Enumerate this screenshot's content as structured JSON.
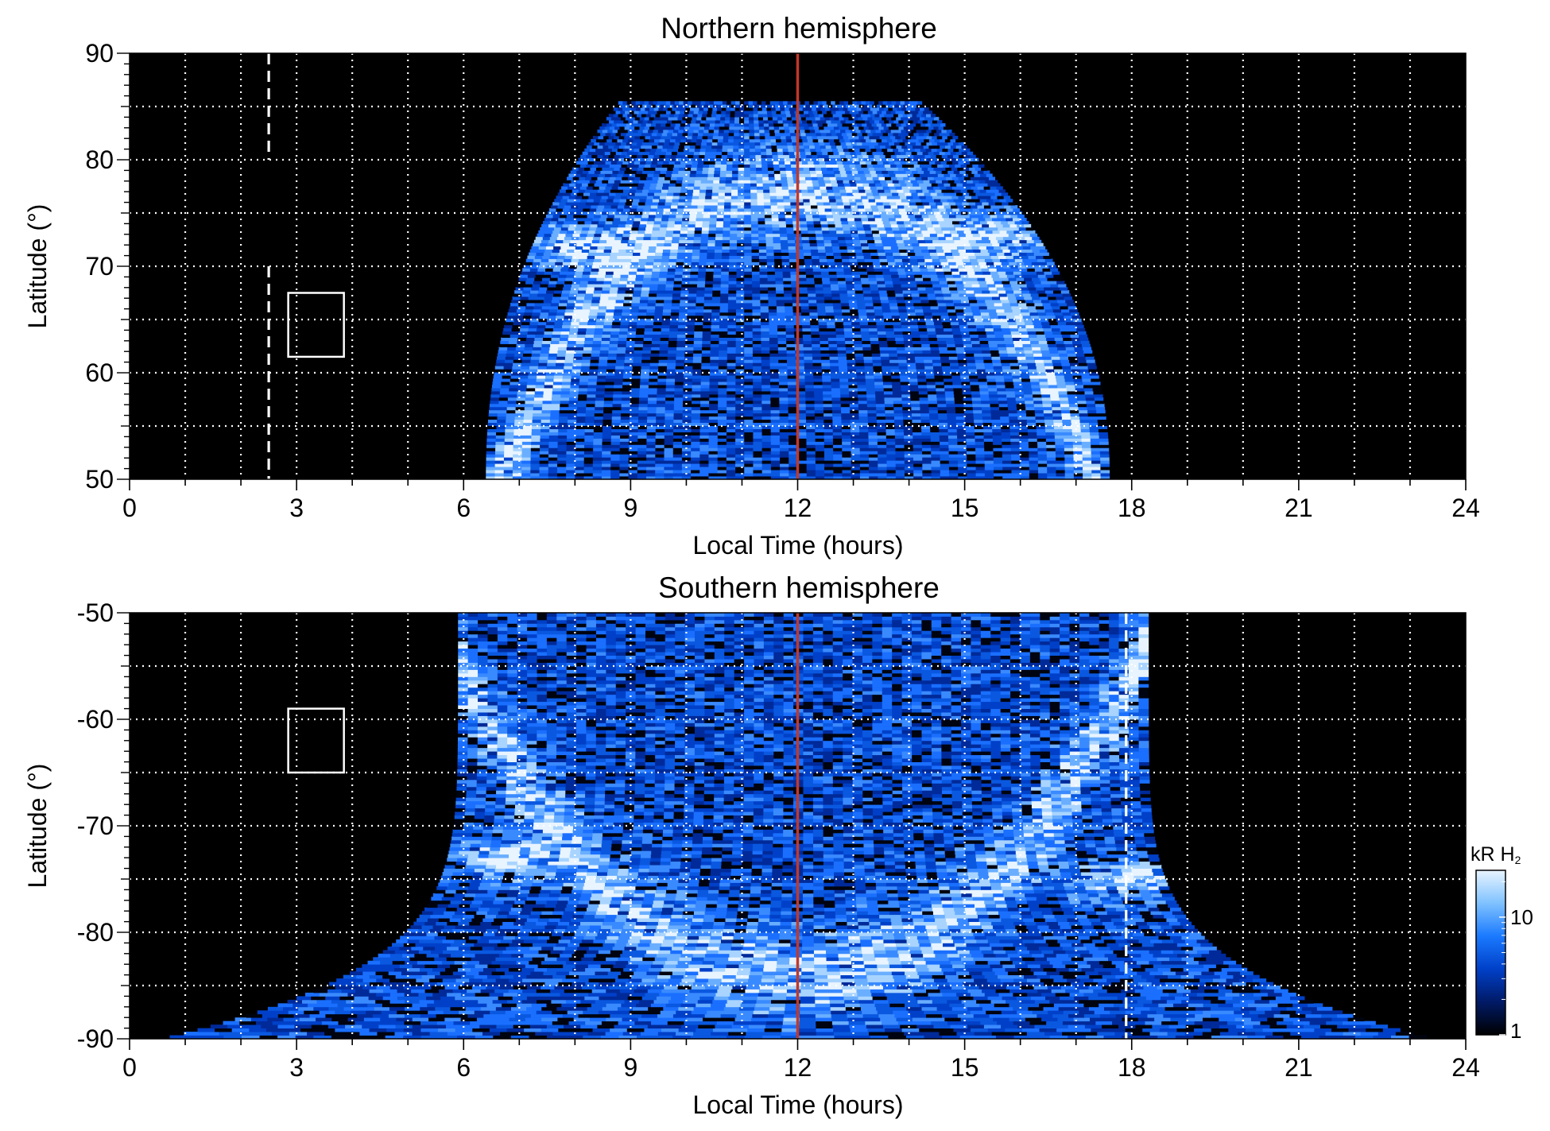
{
  "chart_data": [
    {
      "type": "heatmap",
      "title": "Northern hemisphere",
      "xlabel": "Local Time (hours)",
      "ylabel": "Latitude (°)",
      "xlim": [
        0,
        24
      ],
      "ylim": [
        50,
        90
      ],
      "x_ticks": [
        0,
        3,
        6,
        9,
        12,
        15,
        18,
        21,
        24
      ],
      "y_ticks": [
        50,
        60,
        70,
        80,
        90
      ],
      "grid_x": [
        1,
        2,
        3,
        4,
        5,
        6,
        7,
        8,
        9,
        10,
        11,
        12,
        13,
        14,
        15,
        16,
        17,
        18,
        19,
        20,
        21,
        22,
        23
      ],
      "grid_y": [
        55,
        60,
        65,
        70,
        75,
        80,
        85
      ],
      "grid": true,
      "noon_line_lt": 12,
      "dashed_line_lt": 2.5,
      "dashed_line_lat_ranges": [
        [
          50,
          70
        ],
        [
          80,
          90
        ]
      ],
      "box": {
        "lt": [
          2.85,
          3.85
        ],
        "lat": [
          61.5,
          67.5
        ]
      },
      "coverage": {
        "lat_min": 50,
        "lat_max": 85.5,
        "lt_start_at_lat_min": 6.4,
        "lt_end_at_lat_min": 17.6,
        "lt_start_at_lat_max": 8.8,
        "lt_end_at_lat_max": 14.2
      },
      "auroral_oval": {
        "noon_lat": 77,
        "center_lt": 12,
        "half_width_lt": 4.9,
        "bright_regions": [
          {
            "lt": 8.0,
            "lat": 72
          },
          {
            "lt": 15.8,
            "lat": 73
          }
        ]
      }
    },
    {
      "type": "heatmap",
      "title": "Southern hemisphere",
      "xlabel": "Local Time (hours)",
      "ylabel": "Latitude (°)",
      "xlim": [
        0,
        24
      ],
      "ylim": [
        -90,
        -50
      ],
      "x_ticks": [
        0,
        3,
        6,
        9,
        12,
        15,
        18,
        21,
        24
      ],
      "y_ticks": [
        -90,
        -80,
        -70,
        -60,
        -50
      ],
      "grid_x": [
        1,
        2,
        3,
        4,
        5,
        6,
        7,
        8,
        9,
        10,
        11,
        12,
        13,
        14,
        15,
        16,
        17,
        18,
        19,
        20,
        21,
        22,
        23
      ],
      "grid_y": [
        -85,
        -80,
        -75,
        -70,
        -65,
        -60,
        -55
      ],
      "grid": true,
      "noon_line_lt": 12,
      "dashed_line_lt": 17.9,
      "dashed_line_lat_ranges": [
        [
          -90,
          -50
        ]
      ],
      "box": {
        "lt": [
          2.85,
          3.85
        ],
        "lat": [
          -65,
          -59
        ]
      },
      "coverage": {
        "lat_min": -90,
        "lat_max": -50,
        "lt_start_at_lat_max": 5.9,
        "lt_end_at_lat_max": 18.3,
        "lt_start_at_lat_min": 0,
        "lt_end_at_lat_min": 24
      },
      "auroral_oval": {
        "noon_lat": -84,
        "center_lt": 12,
        "half_width_lt": 5.8,
        "bright_regions": [
          {
            "lt": 6.8,
            "lat": -73
          },
          {
            "lt": 17.8,
            "lat": -75
          }
        ]
      }
    }
  ],
  "colorbar": {
    "label": "kR H",
    "label_subscript": "2",
    "scale": "log",
    "range": [
      1,
      25
    ],
    "ticks": [
      1,
      10
    ],
    "tick_labels": [
      "1",
      "10"
    ],
    "colors": [
      "#000000",
      "#001a66",
      "#0040c8",
      "#1a7aff",
      "#7fc2ff",
      "#e8f4ff"
    ]
  },
  "reference_line_color": "#c0392b"
}
